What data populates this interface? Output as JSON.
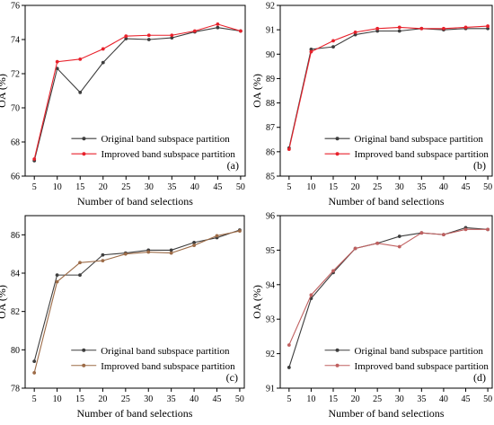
{
  "figure": {
    "panels": [
      "a",
      "b",
      "c",
      "d"
    ]
  },
  "chart_data": [
    {
      "panel": "(a)",
      "type": "line",
      "xlabel": "Number of band selections",
      "ylabel": "OA (%)",
      "x": [
        5,
        10,
        15,
        20,
        25,
        30,
        35,
        40,
        45,
        50
      ],
      "xlim": [
        3,
        51
      ],
      "ylim": [
        66,
        76
      ],
      "yticks": [
        66,
        68,
        70,
        72,
        74,
        76
      ],
      "legend_position": "bottom-right",
      "series": [
        {
          "name": "Original band subspace partition",
          "color": "#3d3d3d",
          "values": [
            66.9,
            72.3,
            70.9,
            72.65,
            74.05,
            74.0,
            74.1,
            74.45,
            74.7,
            74.5
          ]
        },
        {
          "name": "Improved band subspace partition",
          "color": "#e8212b",
          "values": [
            67.0,
            72.7,
            72.85,
            73.45,
            74.2,
            74.25,
            74.25,
            74.5,
            74.9,
            74.5
          ]
        }
      ]
    },
    {
      "panel": "(b)",
      "type": "line",
      "xlabel": "Number of band selections",
      "ylabel": "OA (%)",
      "x": [
        5,
        10,
        15,
        20,
        25,
        30,
        35,
        40,
        45,
        50
      ],
      "xlim": [
        3,
        51
      ],
      "ylim": [
        85,
        92
      ],
      "yticks": [
        85,
        86,
        87,
        88,
        89,
        90,
        91,
        92
      ],
      "legend_position": "bottom-right",
      "series": [
        {
          "name": "Original band subspace partition",
          "color": "#3d3d3d",
          "values": [
            86.15,
            90.2,
            90.3,
            90.8,
            90.95,
            90.95,
            91.05,
            91.0,
            91.05,
            91.05
          ]
        },
        {
          "name": "Improved band subspace partition",
          "color": "#e8212b",
          "values": [
            86.1,
            90.1,
            90.55,
            90.9,
            91.05,
            91.1,
            91.05,
            91.05,
            91.1,
            91.15
          ]
        }
      ]
    },
    {
      "panel": "(c)",
      "type": "line",
      "xlabel": "Number of band selections",
      "ylabel": "OA (%)",
      "x": [
        5,
        10,
        15,
        20,
        25,
        30,
        35,
        40,
        45,
        50
      ],
      "xlim": [
        3,
        51
      ],
      "ylim": [
        78,
        87
      ],
      "yticks": [
        78,
        80,
        82,
        84,
        86
      ],
      "legend_position": "bottom-right",
      "series": [
        {
          "name": "Original band subspace partition",
          "color": "#3d3d3d",
          "values": [
            79.4,
            83.9,
            83.9,
            84.95,
            85.05,
            85.2,
            85.2,
            85.6,
            85.85,
            86.25
          ]
        },
        {
          "name": "Improved band subspace partition",
          "color": "#9c6b47",
          "values": [
            78.8,
            83.55,
            84.55,
            84.65,
            85.0,
            85.1,
            85.05,
            85.45,
            85.95,
            86.2
          ]
        }
      ]
    },
    {
      "panel": "(d)",
      "type": "line",
      "xlabel": "Number of band selections",
      "ylabel": "OA (%)",
      "x": [
        5,
        10,
        15,
        20,
        25,
        30,
        35,
        40,
        45,
        50
      ],
      "xlim": [
        3,
        51
      ],
      "ylim": [
        91,
        96
      ],
      "yticks": [
        91,
        92,
        93,
        94,
        95,
        96
      ],
      "legend_position": "bottom-right",
      "series": [
        {
          "name": "Original band subspace partition",
          "color": "#3d3d3d",
          "values": [
            91.6,
            93.6,
            94.35,
            95.05,
            95.2,
            95.4,
            95.5,
            95.45,
            95.65,
            95.6
          ]
        },
        {
          "name": "Improved band subspace partition",
          "color": "#c06060",
          "values": [
            92.25,
            93.7,
            94.4,
            95.05,
            95.2,
            95.1,
            95.5,
            95.45,
            95.6,
            95.6
          ]
        }
      ]
    }
  ]
}
